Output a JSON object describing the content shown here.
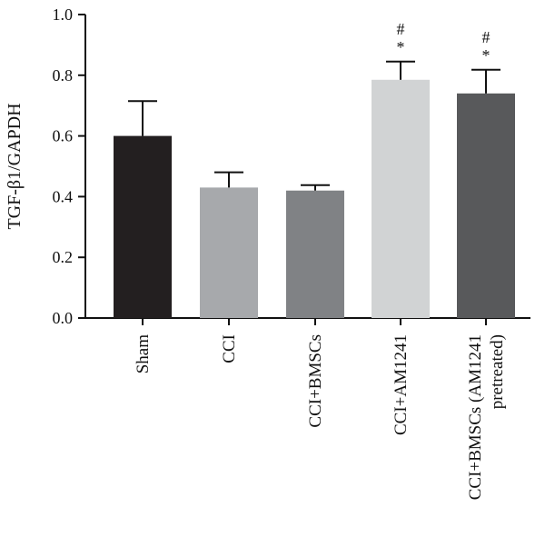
{
  "chart_data": {
    "type": "bar",
    "ylabel": "TGF-β1/GAPDH",
    "ylim": [
      0,
      1.0
    ],
    "yticks": [
      "0.0",
      "0.2",
      "0.4",
      "0.6",
      "0.8",
      "1.0"
    ],
    "categories": [
      [
        "Sham"
      ],
      [
        "CCI"
      ],
      [
        "CCI+BMSCs"
      ],
      [
        "CCI+AM1241"
      ],
      [
        "CCI+BMSCs (AM1241",
        "pretreated)"
      ]
    ],
    "values": [
      0.6,
      0.43,
      0.42,
      0.785,
      0.74
    ],
    "errors": [
      0.115,
      0.05,
      0.018,
      0.06,
      0.078
    ],
    "colors": [
      "#231f20",
      "#a7a9ac",
      "#808285",
      "#d1d3d4",
      "#58595b"
    ],
    "annotations": [
      [],
      [],
      [],
      [
        "#",
        "*"
      ],
      [
        "#",
        "*"
      ]
    ],
    "grid": false,
    "legend": "none"
  }
}
